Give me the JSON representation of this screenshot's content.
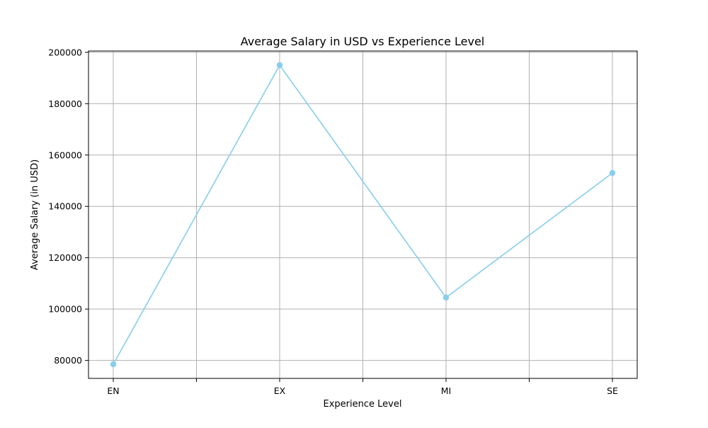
{
  "chart_data": {
    "type": "line",
    "title": "Average Salary in USD vs Experience Level",
    "xlabel": "Experience Level",
    "ylabel": "Average Salary (in USD)",
    "categories": [
      "EN",
      "EX",
      "MI",
      "SE"
    ],
    "series": [
      {
        "values": [
          78500,
          195000,
          104500,
          153000
        ]
      }
    ],
    "ylim": [
      73000,
      200500
    ],
    "y_ticks": [
      80000,
      100000,
      120000,
      140000,
      160000,
      180000,
      200000
    ],
    "y_tick_labels": [
      "80000",
      "100000",
      "120000",
      "140000",
      "160000",
      "180000",
      "200000"
    ],
    "grid": true,
    "legend": "none",
    "colors": {
      "line": "#87ceeb",
      "marker": "#87ceeb",
      "grid": "#b0b0b0",
      "axes": "#000000"
    }
  }
}
